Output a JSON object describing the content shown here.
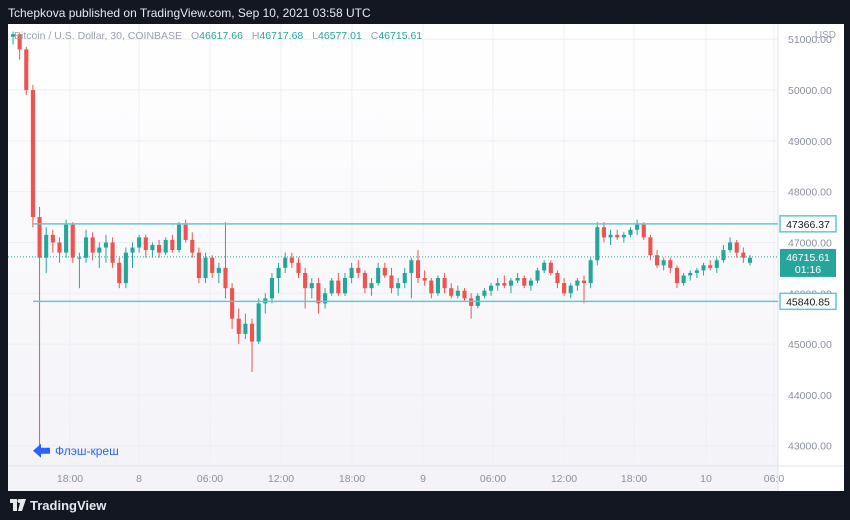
{
  "header": {
    "published": "Tchepkova published on TradingView.com, Sep 10, 2021 03:58 UTC"
  },
  "legend": {
    "symbol": "Bitcoin / U.S. Dollar, 30, COINBASE",
    "open_label": "O",
    "open": "46617.66",
    "high_label": "H",
    "high": "46717.68",
    "low_label": "L",
    "low": "46577.01",
    "close_label": "C",
    "close": "46715.61"
  },
  "currency": "USD",
  "footer": {
    "brand": "TradingView"
  },
  "colors": {
    "up": "#26a69a",
    "down": "#ef5350",
    "level": "#5fc8d6",
    "annotation": "#2962ff",
    "tag": "#2962ff"
  },
  "chart_data": {
    "type": "candlestick",
    "title": "Bitcoin / U.S. Dollar, 30, COINBASE",
    "y_ticks": [
      "43000.00",
      "44000.00",
      "45000.00",
      "46000.00",
      "47000.00",
      "48000.00",
      "49000.00",
      "50000.00",
      "51000.00"
    ],
    "y_tick_values": [
      43000,
      44000,
      45000,
      46000,
      47000,
      48000,
      49000,
      50000,
      51000
    ],
    "x_tick_labels": [
      "18:00",
      "8",
      "06:00",
      "12:00",
      "18:00",
      "9",
      "06:00",
      "12:00",
      "18:00",
      "10",
      "06:0"
    ],
    "y_range": [
      42600,
      51300
    ],
    "levels": [
      {
        "label": "47366.37",
        "value": 47366.37
      },
      {
        "label": "45840.85",
        "value": 45840.85
      }
    ],
    "last_price": {
      "label": "46715.61",
      "timer": "01:16",
      "value": 46715.61
    },
    "annotation": {
      "text": "Флэш-креш",
      "value": 42900
    },
    "candles": [
      [
        51050,
        51150,
        50900,
        51100
      ],
      [
        51100,
        51100,
        50600,
        50800
      ],
      [
        50800,
        50850,
        49900,
        50000
      ],
      [
        50000,
        50100,
        47300,
        47500
      ],
      [
        47500,
        47700,
        42900,
        46700
      ],
      [
        46700,
        47300,
        46400,
        47150
      ],
      [
        47150,
        47250,
        46800,
        47000
      ],
      [
        47000,
        47100,
        46600,
        46800
      ],
      [
        46800,
        47450,
        46700,
        47350
      ],
      [
        47350,
        47400,
        46600,
        46700
      ],
      [
        46700,
        46800,
        46100,
        46700
      ],
      [
        46700,
        47250,
        46600,
        47100
      ],
      [
        47100,
        47200,
        46650,
        46800
      ],
      [
        46800,
        47000,
        46500,
        46900
      ],
      [
        46900,
        47150,
        46600,
        47000
      ],
      [
        47000,
        47100,
        46500,
        46600
      ],
      [
        46600,
        46700,
        46100,
        46200
      ],
      [
        46200,
        46900,
        46100,
        46800
      ],
      [
        46800,
        47000,
        46500,
        46900
      ],
      [
        46900,
        47150,
        46800,
        47100
      ],
      [
        47100,
        47150,
        46700,
        46850
      ],
      [
        46850,
        47000,
        46700,
        46950
      ],
      [
        46950,
        47050,
        46700,
        46800
      ],
      [
        46800,
        47100,
        46750,
        47050
      ],
      [
        47050,
        47150,
        46800,
        46850
      ],
      [
        46850,
        47400,
        46800,
        47350
      ],
      [
        47350,
        47450,
        47000,
        47050
      ],
      [
        47050,
        47200,
        46700,
        46800
      ],
      [
        46800,
        46900,
        46200,
        46300
      ],
      [
        46300,
        46800,
        46200,
        46700
      ],
      [
        46700,
        46750,
        46300,
        46400
      ],
      [
        46400,
        46600,
        46200,
        46500
      ],
      [
        46500,
        47400,
        45900,
        46100
      ],
      [
        46100,
        46200,
        45300,
        45500
      ],
      [
        45500,
        45700,
        45000,
        45200
      ],
      [
        45200,
        45600,
        45100,
        45400
      ],
      [
        45400,
        45500,
        44450,
        45050
      ],
      [
        45050,
        45900,
        45000,
        45800
      ],
      [
        45800,
        46000,
        45600,
        45900
      ],
      [
        45900,
        46400,
        45800,
        46300
      ],
      [
        46300,
        46600,
        46000,
        46500
      ],
      [
        46500,
        46800,
        46400,
        46700
      ],
      [
        46700,
        46800,
        46500,
        46600
      ],
      [
        46600,
        46700,
        46300,
        46400
      ],
      [
        46400,
        46500,
        45700,
        46100
      ],
      [
        46100,
        46300,
        45900,
        46200
      ],
      [
        46200,
        46300,
        45600,
        45800
      ],
      [
        45800,
        46100,
        45700,
        46000
      ],
      [
        46000,
        46300,
        45950,
        46250
      ],
      [
        46250,
        46400,
        45950,
        46000
      ],
      [
        46000,
        46400,
        45950,
        46300
      ],
      [
        46300,
        46600,
        46200,
        46500
      ],
      [
        46500,
        46650,
        46300,
        46400
      ],
      [
        46400,
        46450,
        46000,
        46100
      ],
      [
        46100,
        46300,
        45950,
        46200
      ],
      [
        46200,
        46600,
        46150,
        46500
      ],
      [
        46500,
        46600,
        46300,
        46350
      ],
      [
        46350,
        46500,
        46000,
        46100
      ],
      [
        46100,
        46300,
        45950,
        46200
      ],
      [
        46200,
        46500,
        46100,
        46400
      ],
      [
        46400,
        46700,
        45900,
        46650
      ],
      [
        46650,
        46850,
        46200,
        46300
      ],
      [
        46300,
        46450,
        46150,
        46250
      ],
      [
        46250,
        46300,
        45900,
        46000
      ],
      [
        46000,
        46350,
        45950,
        46300
      ],
      [
        46300,
        46400,
        46000,
        46100
      ],
      [
        46100,
        46200,
        45900,
        45950
      ],
      [
        45950,
        46150,
        45900,
        46050
      ],
      [
        46050,
        46100,
        45850,
        45900
      ],
      [
        45900,
        46000,
        45500,
        45750
      ],
      [
        45750,
        46000,
        45700,
        45950
      ],
      [
        45950,
        46100,
        45900,
        46050
      ],
      [
        46050,
        46200,
        45950,
        46150
      ],
      [
        46150,
        46300,
        46050,
        46200
      ],
      [
        46200,
        46350,
        46100,
        46150
      ],
      [
        46150,
        46300,
        46000,
        46250
      ],
      [
        46250,
        46400,
        46200,
        46300
      ],
      [
        46300,
        46350,
        46100,
        46150
      ],
      [
        46150,
        46300,
        46050,
        46250
      ],
      [
        46250,
        46500,
        46200,
        46450
      ],
      [
        46450,
        46650,
        46400,
        46600
      ],
      [
        46600,
        46650,
        46350,
        46400
      ],
      [
        46400,
        46450,
        46100,
        46200
      ],
      [
        46200,
        46300,
        45950,
        46000
      ],
      [
        46000,
        46200,
        45900,
        46150
      ],
      [
        46150,
        46300,
        46050,
        46250
      ],
      [
        46250,
        46350,
        45800,
        46200
      ],
      [
        46200,
        46700,
        46100,
        46650
      ],
      [
        46650,
        47400,
        46550,
        47300
      ],
      [
        47300,
        47400,
        47000,
        47100
      ],
      [
        47100,
        47250,
        46950,
        47150
      ],
      [
        47150,
        47250,
        47050,
        47100
      ],
      [
        47100,
        47200,
        47000,
        47150
      ],
      [
        47150,
        47300,
        47100,
        47250
      ],
      [
        47250,
        47450,
        47150,
        47350
      ],
      [
        47350,
        47400,
        47050,
        47100
      ],
      [
        47100,
        47150,
        46650,
        46750
      ],
      [
        46750,
        46850,
        46500,
        46550
      ],
      [
        46550,
        46700,
        46450,
        46650
      ],
      [
        46650,
        46700,
        46400,
        46500
      ],
      [
        46500,
        46550,
        46100,
        46200
      ],
      [
        46200,
        46400,
        46150,
        46350
      ],
      [
        46350,
        46450,
        46250,
        46400
      ],
      [
        46400,
        46500,
        46300,
        46450
      ],
      [
        46450,
        46600,
        46350,
        46550
      ],
      [
        46550,
        46650,
        46450,
        46500
      ],
      [
        46500,
        46700,
        46400,
        46650
      ],
      [
        46650,
        46950,
        46600,
        46850
      ],
      [
        46850,
        47100,
        46800,
        47000
      ],
      [
        47000,
        47050,
        46700,
        46800
      ],
      [
        46800,
        46900,
        46600,
        46700
      ],
      [
        46600,
        46750,
        46550,
        46700
      ]
    ]
  }
}
